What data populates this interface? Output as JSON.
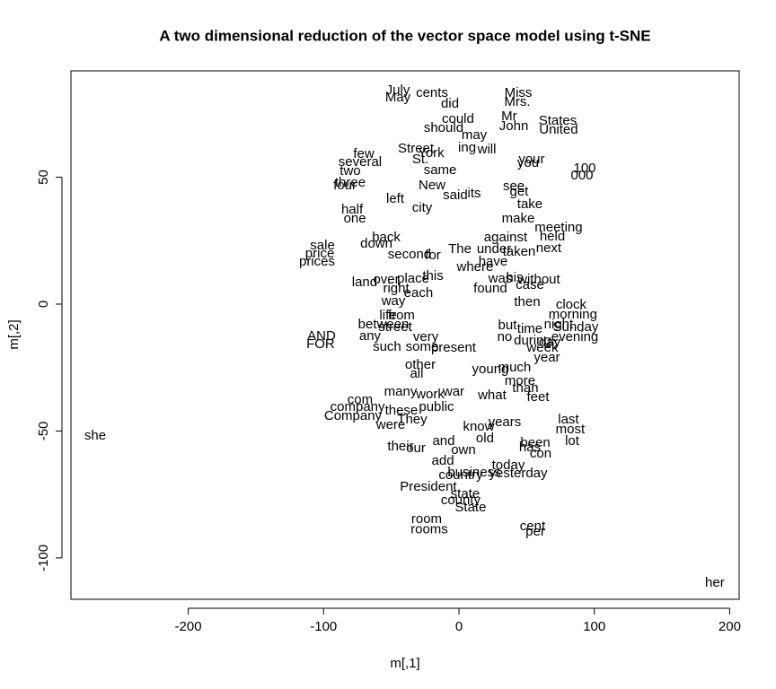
{
  "chart_data": {
    "type": "scatter",
    "title": "A two dimensional reduction of the vector space model using t-SNE",
    "x_label": "m[,1]",
    "y_label": "m[,2]",
    "xlim": [
      -286.6,
      207.0
    ],
    "ylim": [
      -116.3,
      91.9
    ],
    "xticks": [
      -200,
      -100,
      0,
      100,
      200
    ],
    "yticks": [
      -100,
      -50,
      0,
      50
    ],
    "labels": [
      "she",
      "her",
      "Miss",
      "Mrs.",
      "Mr",
      "July",
      "May",
      "cents",
      "did",
      "could",
      "John",
      "States",
      "United",
      "should",
      "may",
      "York",
      "St.",
      "Street",
      "ing",
      "will",
      "your",
      "you",
      "100",
      "000",
      "few",
      "several",
      "two",
      "three",
      "four",
      "same",
      "New",
      "said",
      "its",
      "see",
      "get",
      "left",
      "city",
      "take",
      "half",
      "one",
      "make",
      "meeting",
      "held",
      "against",
      "next",
      "taken",
      "sale",
      "price",
      "prices",
      "down",
      "back",
      "second",
      "The",
      "under",
      "for",
      "have",
      "where",
      "land",
      "right",
      "over",
      "place",
      "this",
      "was",
      "without",
      "case",
      "his",
      "each",
      "found",
      "way",
      "then",
      "clock",
      "morning",
      "Sunday",
      "evening",
      "from",
      "life",
      "street",
      "between",
      "but",
      "time",
      "night",
      "day",
      "during",
      "week",
      "no",
      "year",
      "AND",
      "FOR",
      "any",
      "such",
      "some",
      "very",
      "present",
      "other",
      "all",
      "much",
      "young",
      "more",
      "than",
      "feet",
      "many",
      "work",
      "war",
      "what",
      "com",
      "company",
      "public",
      "these",
      "Company",
      "They",
      "last",
      "years",
      "most",
      "were",
      "know",
      "has",
      "old",
      "been",
      "lot",
      "their",
      "our",
      "and",
      "own",
      "con",
      "add",
      "today",
      "business",
      "yesterday",
      "country",
      "President",
      "state",
      "county",
      "State",
      "room",
      "rooms",
      "cent",
      "per"
    ],
    "x": [
      -268.7,
      189,
      43.8,
      43.1,
      37.1,
      -45.1,
      -45.1,
      -19.9,
      -6.6,
      -0.7,
      40.5,
      73.0,
      73.6,
      -11.3,
      11.3,
      -20.6,
      -28.5,
      -31.8,
      6.0,
      20.6,
      53.7,
      51.1,
      92.9,
      90.9,
      -70.3,
      -73.0,
      -80.3,
      -80.3,
      -84.2,
      -13.9,
      -19.9,
      -2.7,
      11.3,
      40.5,
      44.4,
      -47.1,
      -27.2,
      52.4,
      -78.9,
      -76.9,
      43.8,
      73.6,
      69.0,
      34.5,
      66.3,
      44.4,
      -100.8,
      -102.8,
      -104.8,
      -61.0,
      -53.7,
      -36.5,
      0.7,
      25.9,
      -19.2,
      25.2,
      11.9,
      -69.7,
      -46.4,
      -53.7,
      -33.8,
      -19.2,
      30.5,
      59.0,
      52.4,
      41.1,
      -29.9,
      23.2,
      -48.4,
      50.4,
      82.9,
      84.2,
      86.2,
      85.6,
      -42.5,
      -52.4,
      -47.1,
      -55.7,
      35.8,
      52.4,
      73.6,
      67.0,
      54.4,
      61.7,
      33.8,
      65.0,
      -101.5,
      -102.2,
      -65.7,
      -53.1,
      -27.2,
      -24.5,
      -4.0,
      -28.5,
      -31.2,
      41.1,
      23.2,
      45.1,
      49.1,
      58.4,
      -43.1,
      -21.2,
      -4.0,
      24.5,
      -73.0,
      -74.9,
      -16.6,
      -42.5,
      -78.3,
      -34.5,
      80.9,
      33.8,
      82.2,
      -50.4,
      14.6,
      52.4,
      19.2,
      56.4,
      83.6,
      -43.1,
      -31.8,
      -11.3,
      3.3,
      60.4,
      -11.9,
      36.5,
      11.3,
      43.8,
      1.3,
      -22.6,
      4.6,
      1.3,
      8.6,
      -23.9,
      -21.9,
      54.4,
      56.4
    ],
    "y": [
      -51.9,
      -109.9,
      83.0,
      79.5,
      73.9,
      84.1,
      81.3,
      83.0,
      78.8,
      72.8,
      70.0,
      72.1,
      68.6,
      69.3,
      66.4,
      59.4,
      56.9,
      61.1,
      61.5,
      60.8,
      56.9,
      55.5,
      53.4,
      50.5,
      59.0,
      55.8,
      52.3,
      47.7,
      46.6,
      52.7,
      46.6,
      42.8,
      43.5,
      46.3,
      44.2,
      41.3,
      37.8,
      39.2,
      37.1,
      33.6,
      33.6,
      30.0,
      26.5,
      26.1,
      21.9,
      20.5,
      23.0,
      19.8,
      16.6,
      23.7,
      26.1,
      19.4,
      21.6,
      21.6,
      19.1,
      16.6,
      14.5,
      8.5,
      6.0,
      9.5,
      9.9,
      11.0,
      9.9,
      9.5,
      7.4,
      10.2,
      4.2,
      6.0,
      1.1,
      0.7,
      -0.4,
      -4.2,
      -9.2,
      -13.1,
      -4.6,
      -4.6,
      -9.2,
      -8.1,
      -8.5,
      -9.9,
      -8.1,
      -15.2,
      -14.5,
      -17.3,
      -13.1,
      -21.2,
      -12.7,
      -15.9,
      -12.7,
      -17.0,
      -17.0,
      -13.1,
      -17.3,
      -24.0,
      -27.6,
      -25.1,
      -25.8,
      -30.4,
      -33.2,
      -36.7,
      -34.6,
      -35.7,
      -34.6,
      -36.0,
      -37.8,
      -40.6,
      -40.6,
      -42.0,
      -44.2,
      -45.6,
      -45.6,
      -46.6,
      -49.5,
      -47.7,
      -48.4,
      -56.5,
      -53.0,
      -54.8,
      -54.1,
      -56.2,
      -56.9,
      -54.1,
      -57.6,
      -59.0,
      -61.8,
      -63.6,
      -66.4,
      -66.8,
      -67.5,
      -72.1,
      -74.9,
      -77.4,
      -80.2,
      -84.8,
      -89.0,
      -87.6,
      -89.8
    ]
  }
}
